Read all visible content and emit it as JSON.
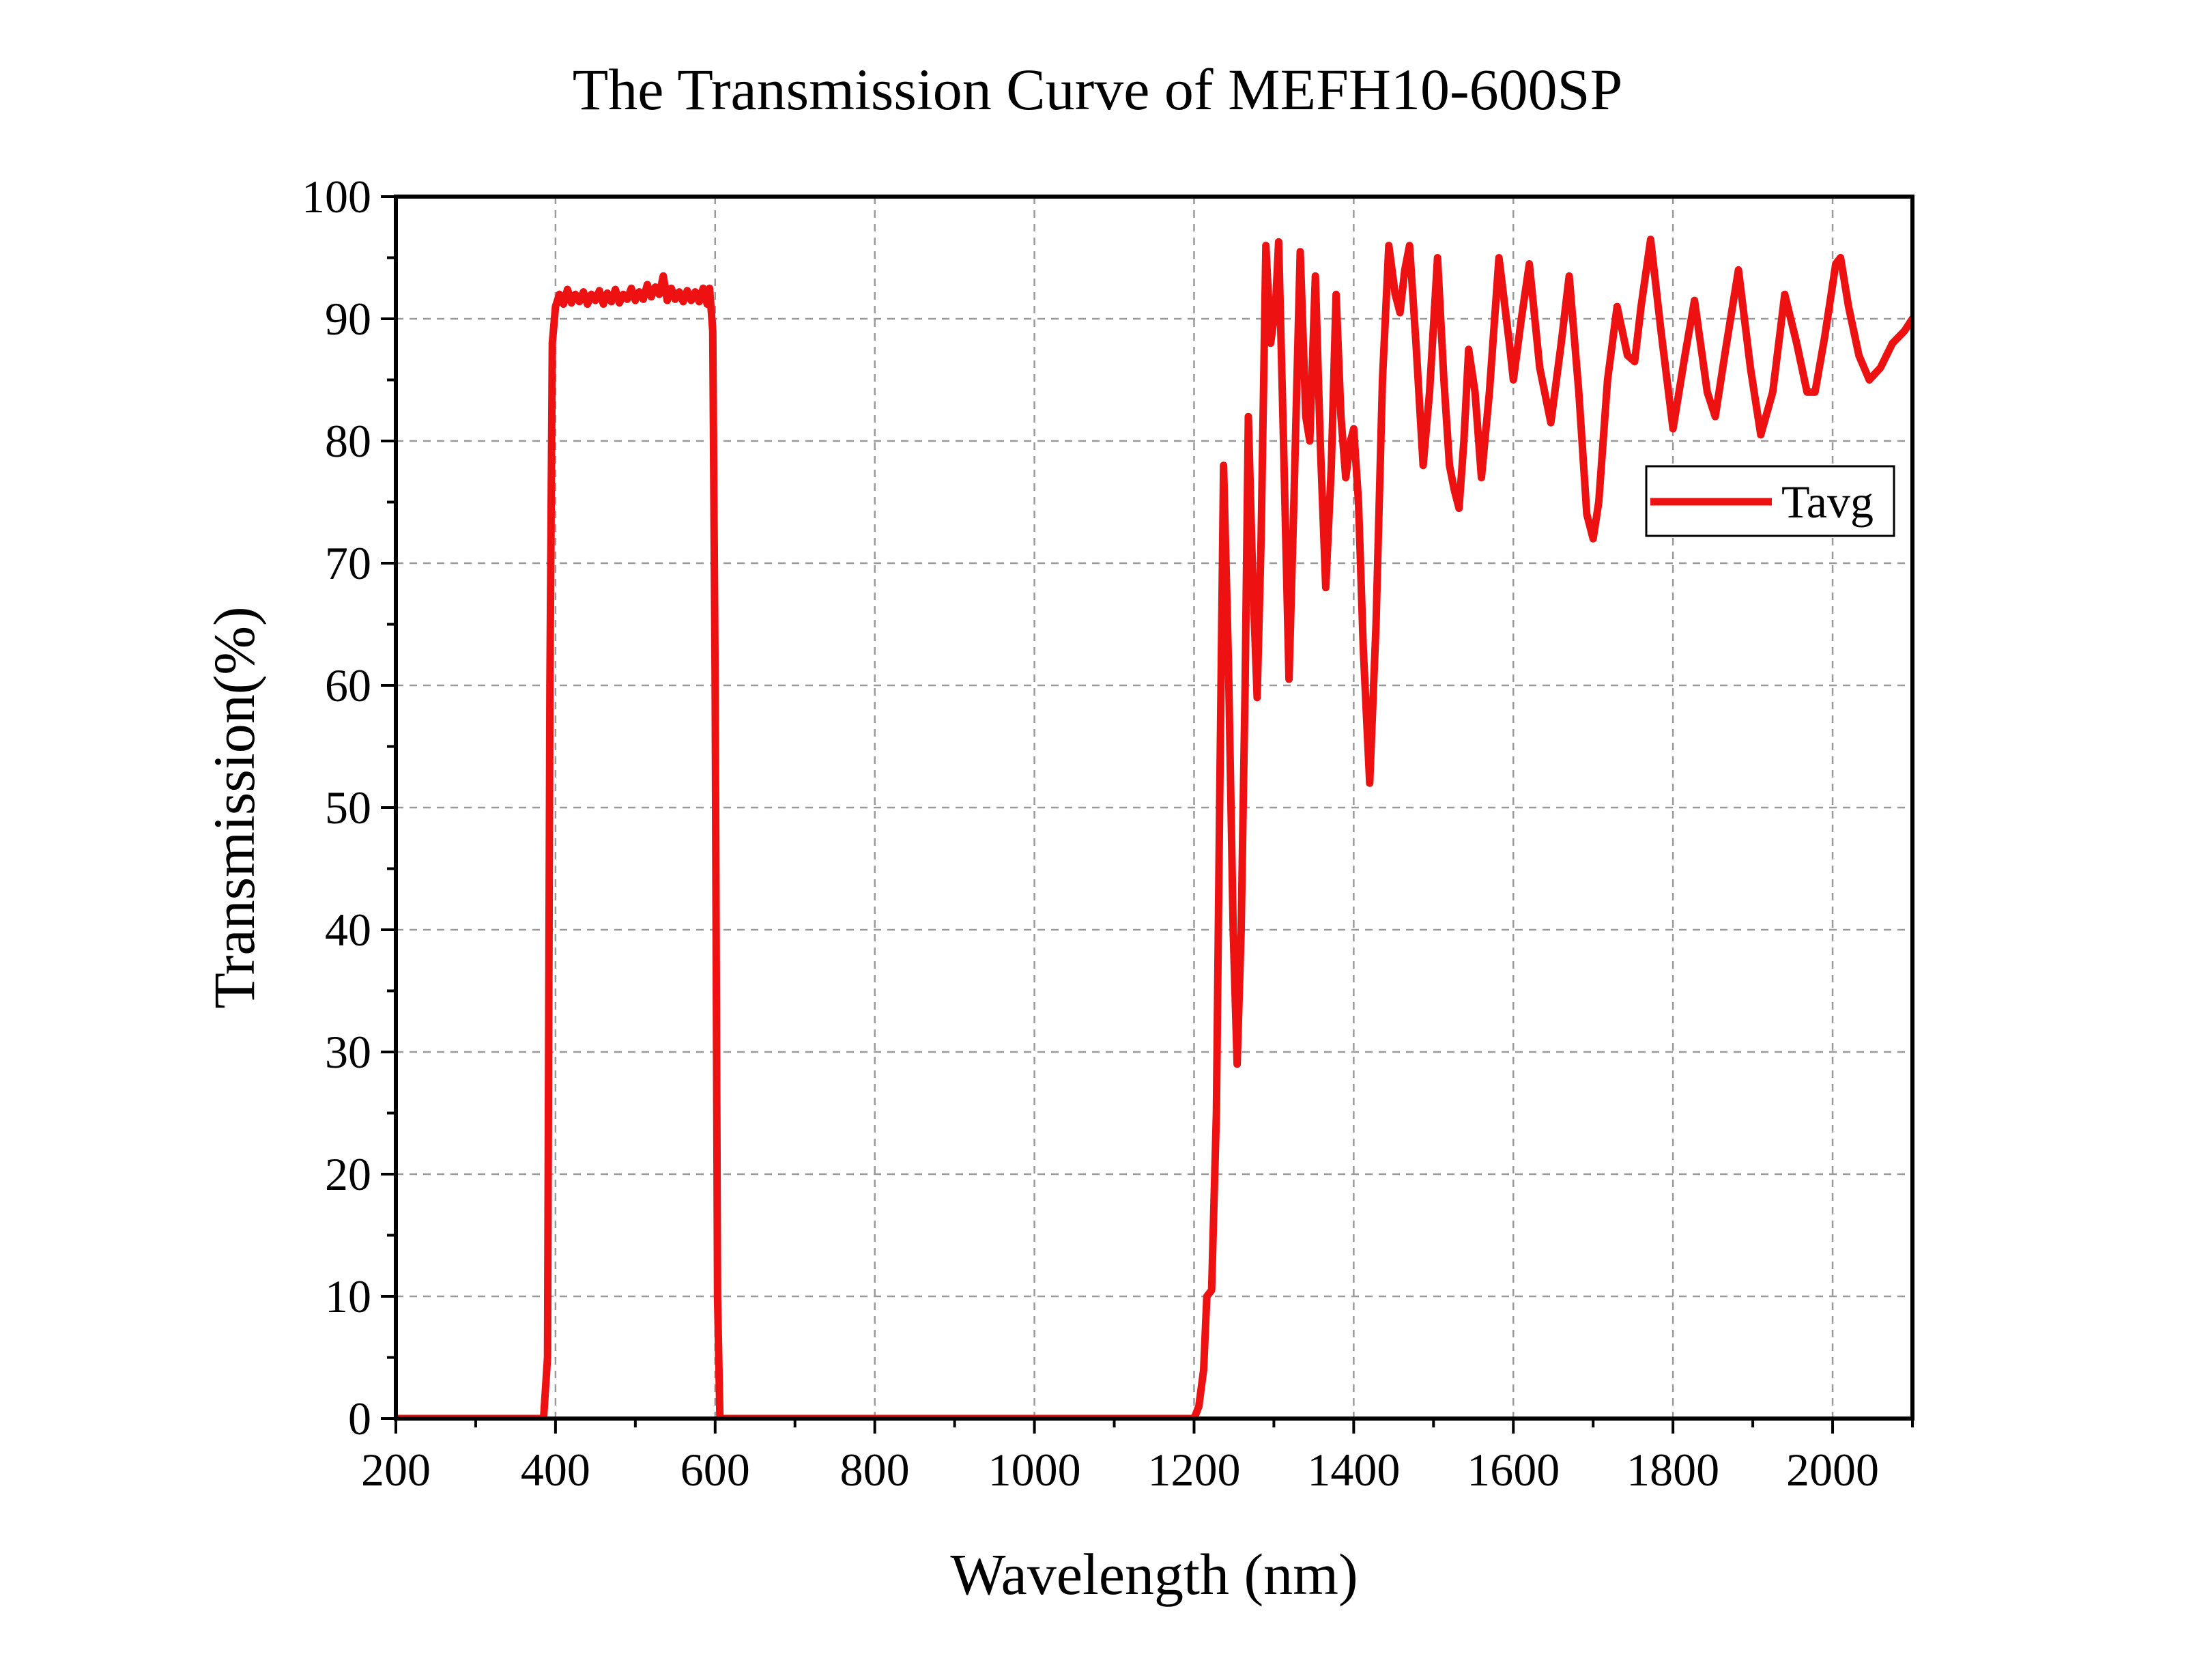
{
  "chart_data": {
    "type": "line",
    "title": "The Transmission Curve of MEFH10-600SP",
    "xlabel": "Wavelength (nm)",
    "ylabel": "Transmission(%)",
    "xlim": [
      200,
      2100
    ],
    "ylim": [
      0,
      100
    ],
    "xticks": [
      200,
      400,
      600,
      800,
      1000,
      1200,
      1400,
      1600,
      1800,
      2000
    ],
    "yticks": [
      0,
      10,
      20,
      30,
      40,
      50,
      60,
      70,
      80,
      90,
      100
    ],
    "grid": true,
    "legend_position": "top-right",
    "series": [
      {
        "name": "Tavg",
        "color": "#ee1111",
        "points": [
          [
            200,
            0
          ],
          [
            385,
            0
          ],
          [
            390,
            5
          ],
          [
            393,
            60
          ],
          [
            396,
            88
          ],
          [
            400,
            91
          ],
          [
            405,
            92
          ],
          [
            410,
            91.2
          ],
          [
            415,
            92.4
          ],
          [
            420,
            91.3
          ],
          [
            425,
            92
          ],
          [
            430,
            91.4
          ],
          [
            435,
            92.2
          ],
          [
            440,
            91.2
          ],
          [
            445,
            92
          ],
          [
            450,
            91.5
          ],
          [
            455,
            92.3
          ],
          [
            460,
            91.2
          ],
          [
            465,
            92.1
          ],
          [
            470,
            91.4
          ],
          [
            475,
            92.4
          ],
          [
            480,
            91.3
          ],
          [
            485,
            92
          ],
          [
            490,
            91.6
          ],
          [
            495,
            92.5
          ],
          [
            500,
            91.5
          ],
          [
            505,
            92.2
          ],
          [
            510,
            91.6
          ],
          [
            515,
            92.8
          ],
          [
            520,
            91.8
          ],
          [
            525,
            92.6
          ],
          [
            530,
            92
          ],
          [
            535,
            93.5
          ],
          [
            540,
            91.5
          ],
          [
            545,
            92.5
          ],
          [
            550,
            91.6
          ],
          [
            555,
            92.2
          ],
          [
            560,
            91.4
          ],
          [
            565,
            92.3
          ],
          [
            570,
            91.5
          ],
          [
            575,
            92.2
          ],
          [
            580,
            91.4
          ],
          [
            585,
            92.5
          ],
          [
            590,
            91.2
          ],
          [
            593,
            92.5
          ],
          [
            597,
            89
          ],
          [
            600,
            60
          ],
          [
            603,
            10
          ],
          [
            606,
            0
          ],
          [
            1200,
            0
          ],
          [
            1206,
            1
          ],
          [
            1212,
            4
          ],
          [
            1216,
            10
          ],
          [
            1222,
            10.5
          ],
          [
            1228,
            25
          ],
          [
            1232,
            50
          ],
          [
            1237,
            78
          ],
          [
            1243,
            62
          ],
          [
            1249,
            40
          ],
          [
            1254,
            29
          ],
          [
            1259,
            40
          ],
          [
            1264,
            60
          ],
          [
            1268,
            82
          ],
          [
            1273,
            70
          ],
          [
            1279,
            59
          ],
          [
            1284,
            72
          ],
          [
            1290,
            96
          ],
          [
            1296,
            88
          ],
          [
            1302,
            91
          ],
          [
            1306,
            96.3
          ],
          [
            1312,
            80
          ],
          [
            1319,
            60.5
          ],
          [
            1325,
            75
          ],
          [
            1333,
            95.5
          ],
          [
            1340,
            82
          ],
          [
            1345,
            80
          ],
          [
            1352,
            93.5
          ],
          [
            1358,
            80
          ],
          [
            1365,
            68
          ],
          [
            1372,
            78
          ],
          [
            1378,
            92
          ],
          [
            1384,
            82
          ],
          [
            1390,
            77
          ],
          [
            1396,
            80
          ],
          [
            1400,
            81
          ],
          [
            1406,
            75
          ],
          [
            1412,
            63
          ],
          [
            1420,
            52
          ],
          [
            1428,
            65
          ],
          [
            1436,
            85
          ],
          [
            1444,
            96
          ],
          [
            1452,
            92
          ],
          [
            1458,
            90.5
          ],
          [
            1464,
            94
          ],
          [
            1470,
            96
          ],
          [
            1478,
            88
          ],
          [
            1487,
            78
          ],
          [
            1495,
            84
          ],
          [
            1505,
            95
          ],
          [
            1513,
            85
          ],
          [
            1520,
            78
          ],
          [
            1526,
            76
          ],
          [
            1532,
            74.5
          ],
          [
            1538,
            80
          ],
          [
            1544,
            87.5
          ],
          [
            1552,
            84
          ],
          [
            1560,
            77
          ],
          [
            1570,
            84
          ],
          [
            1582,
            95
          ],
          [
            1595,
            88
          ],
          [
            1600,
            85
          ],
          [
            1610,
            90
          ],
          [
            1620,
            94.5
          ],
          [
            1633,
            86
          ],
          [
            1647,
            81.5
          ],
          [
            1660,
            88
          ],
          [
            1670,
            93.5
          ],
          [
            1682,
            84
          ],
          [
            1692,
            74
          ],
          [
            1700,
            72
          ],
          [
            1707,
            75
          ],
          [
            1718,
            85
          ],
          [
            1730,
            91
          ],
          [
            1743,
            87
          ],
          [
            1752,
            86.5
          ],
          [
            1760,
            91
          ],
          [
            1772,
            96.5
          ],
          [
            1785,
            89
          ],
          [
            1800,
            81
          ],
          [
            1815,
            87
          ],
          [
            1827,
            91.5
          ],
          [
            1843,
            84
          ],
          [
            1853,
            82
          ],
          [
            1866,
            87.5
          ],
          [
            1882,
            94
          ],
          [
            1897,
            86
          ],
          [
            1910,
            80.5
          ],
          [
            1925,
            84
          ],
          [
            1940,
            92
          ],
          [
            1955,
            88
          ],
          [
            1968,
            84
          ],
          [
            1978,
            84
          ],
          [
            1990,
            88.5
          ],
          [
            2004,
            94.5
          ],
          [
            2010,
            95
          ],
          [
            2020,
            91
          ],
          [
            2033,
            87
          ],
          [
            2046,
            85
          ],
          [
            2060,
            86
          ],
          [
            2075,
            88
          ],
          [
            2090,
            89
          ],
          [
            2100,
            90
          ]
        ]
      }
    ]
  }
}
